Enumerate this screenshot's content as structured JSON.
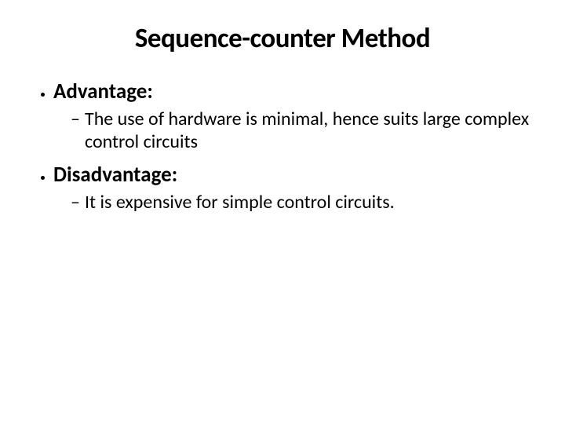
{
  "slide": {
    "title": "Sequence-counter Method",
    "title_fontsize": 35,
    "bullets": [
      {
        "label": "Advantage:",
        "label_fontsize": 27,
        "sub": [
          {
            "text": "The use of hardware is minimal, hence suits large complex control circuits",
            "fontsize": 24
          }
        ]
      },
      {
        "label": "Disadvantage:",
        "label_fontsize": 27,
        "sub": [
          {
            "text": "It is expensive for simple control circuits.",
            "fontsize": 24
          }
        ]
      }
    ],
    "colors": {
      "background": "#ffffff",
      "text": "#000000"
    }
  }
}
